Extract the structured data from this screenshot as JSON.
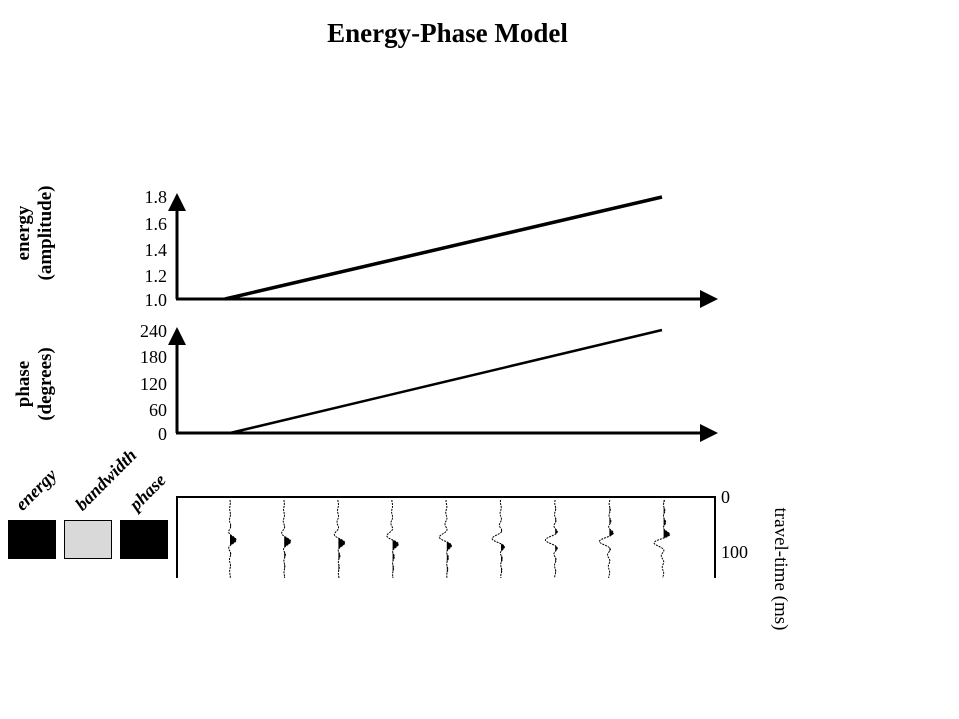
{
  "title": "Energy-Phase Model",
  "energy_plot": {
    "ylabel_line1": "energy",
    "ylabel_line2": "(amplitude)",
    "ticks": [
      "1.8",
      "1.6",
      "1.4",
      "1.2",
      "1.0"
    ],
    "ylim": [
      1.0,
      1.8
    ],
    "line": {
      "start": 1.0,
      "end": 1.8
    }
  },
  "phase_plot": {
    "ylabel_line1": "phase",
    "ylabel_line2": "(degrees)",
    "ticks": [
      "240",
      "180",
      "120",
      "60",
      "0"
    ],
    "ylim": [
      0,
      240
    ],
    "line": {
      "start": 0,
      "end": 240
    }
  },
  "legend": {
    "energy": {
      "label": "energy",
      "color": "#000000"
    },
    "bandwidth": {
      "label": "bandwidth",
      "color": "#d9d9d9"
    },
    "phase": {
      "label": "phase",
      "color": "#000000"
    }
  },
  "traces": {
    "count": 9,
    "phase_deg": [
      0,
      30,
      60,
      90,
      120,
      150,
      180,
      210,
      240
    ],
    "amplitude": [
      1.0,
      1.1,
      1.2,
      1.3,
      1.4,
      1.5,
      1.6,
      1.7,
      1.8
    ],
    "ticks": [
      "0",
      "100"
    ],
    "axis_label": "travel-time (ms)"
  }
}
